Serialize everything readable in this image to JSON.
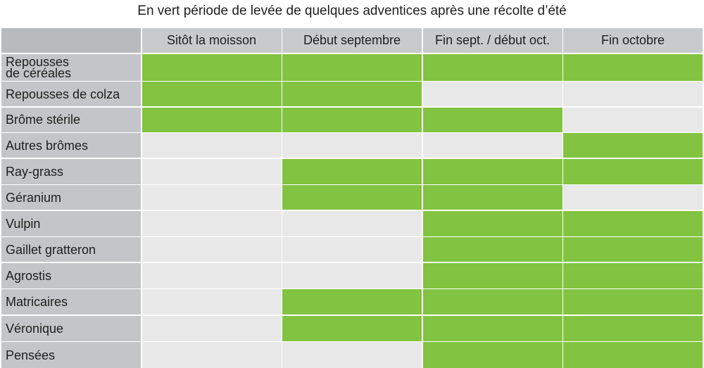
{
  "chart_data": {
    "type": "table",
    "title": "En vert période de levée de quelques adventices après une récolte d’été",
    "columns": [
      "Sitôt la moisson",
      "Début septembre",
      "Fin sept. / début oct.",
      "Fin octobre"
    ],
    "rows": [
      {
        "label": "Repousses\nde céréales",
        "values": [
          1,
          1,
          1,
          1
        ]
      },
      {
        "label": "Repousses de colza",
        "values": [
          1,
          1,
          0,
          0
        ]
      },
      {
        "label": "Brôme stérile",
        "values": [
          1,
          1,
          1,
          0
        ]
      },
      {
        "label": "Autres brômes",
        "values": [
          0,
          0,
          0,
          1
        ]
      },
      {
        "label": "Ray-grass",
        "values": [
          0,
          1,
          1,
          1
        ]
      },
      {
        "label": "Géranium",
        "values": [
          0,
          1,
          1,
          0
        ]
      },
      {
        "label": "Vulpin",
        "values": [
          0,
          0,
          1,
          1
        ]
      },
      {
        "label": "Gaillet gratteron",
        "values": [
          0,
          0,
          1,
          1
        ]
      },
      {
        "label": "Agrostis",
        "values": [
          0,
          0,
          1,
          1
        ]
      },
      {
        "label": "Matricaires",
        "values": [
          0,
          1,
          1,
          1
        ]
      },
      {
        "label": "Véronique",
        "values": [
          0,
          1,
          1,
          1
        ]
      },
      {
        "label": "Pensées",
        "values": [
          0,
          0,
          1,
          1
        ]
      }
    ],
    "colors": {
      "active": "#82c341",
      "inactive": "#e8e8e9",
      "header": "#c9cacc",
      "row_label": "#c4c5c8"
    }
  }
}
